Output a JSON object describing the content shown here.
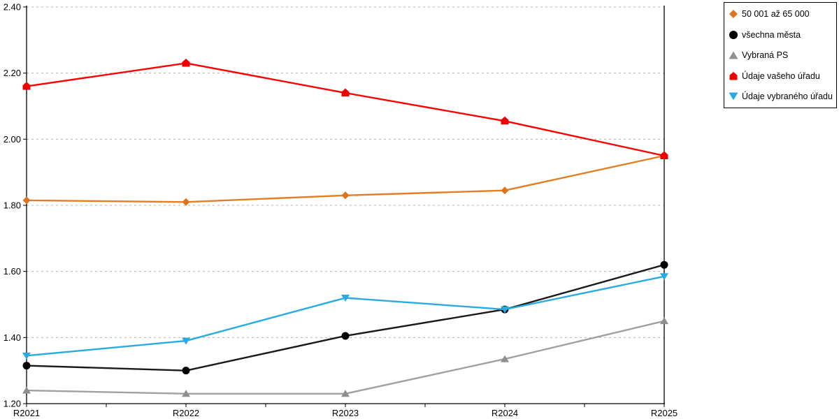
{
  "chart_data": {
    "type": "line",
    "title": "",
    "xlabel": "",
    "ylabel": "",
    "x_categories": [
      "R2021",
      "R2022",
      "R2023",
      "R2024",
      "R2025"
    ],
    "ylim": [
      1.2,
      2.4
    ],
    "ytick_step": 0.2,
    "ytick_labels": [
      "2.40",
      "2.20",
      "2.00",
      "1.80",
      "1.60",
      "1.40",
      "1.20"
    ],
    "grid": "horizontal-dashed",
    "grid_color": "#b3b3b3",
    "axis_color": "#000000",
    "legend_position": "top-right",
    "legend_border_color": "#000000",
    "series": [
      {
        "name": "50 001 až 65 000",
        "marker": "diamond",
        "color": "#e0731d",
        "line_color": "#e57e23",
        "values": [
          1.815,
          1.81,
          1.83,
          1.845,
          1.95
        ]
      },
      {
        "name": "všechna města",
        "marker": "circle",
        "color": "#000000",
        "line_color": "#1a1a1a",
        "values": [
          1.315,
          1.3,
          1.405,
          1.485,
          1.62
        ]
      },
      {
        "name": "Vybraná PS",
        "marker": "triangle-up",
        "color": "#8f8f8f",
        "line_color": "#a0a0a0",
        "values": [
          1.24,
          1.23,
          1.23,
          1.335,
          1.45
        ]
      },
      {
        "name": "Údaje vašeho úřadu",
        "marker": "pentagon",
        "color": "#ee0000",
        "line_color": "#ff0000",
        "values": [
          2.16,
          2.23,
          2.14,
          2.055,
          1.95
        ]
      },
      {
        "name": "Údaje vybraného úřadu",
        "marker": "triangle-down",
        "color": "#29abe2",
        "line_color": "#29abe2",
        "values": [
          1.345,
          1.39,
          1.52,
          1.485,
          1.585
        ]
      }
    ]
  }
}
